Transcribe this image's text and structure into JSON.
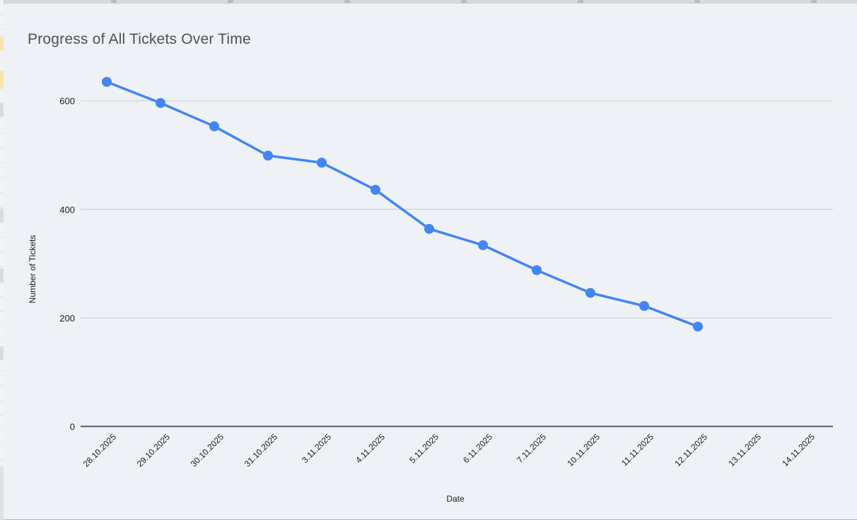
{
  "chart_data": {
    "type": "line",
    "title": "Progress of All Tickets Over Time",
    "xlabel": "Date",
    "ylabel": "Number of Tickets",
    "categories": [
      "28.10.2025",
      "29.10.2025",
      "30.10.2025",
      "31.10.2025",
      "3.11.2025",
      "4.11.2025",
      "5.11.2025",
      "6.11.2025",
      "7.11.2025",
      "10.11.2025",
      "11.11.2025",
      "12.11.2025",
      "13.11.2025",
      "14.11.2025"
    ],
    "series": [
      {
        "values": [
          635,
          596,
          553,
          499,
          486,
          436,
          364,
          334,
          288,
          246,
          222,
          184,
          null,
          null
        ]
      }
    ],
    "yticks": [
      0,
      200,
      400,
      600
    ],
    "ylim": [
      0,
      660
    ],
    "grid": true,
    "legend": "none",
    "line_color": "#4285f4",
    "marker_color": "#4285f4",
    "background_color": "#eef1f6",
    "gridline_color": "#d5d8db",
    "axis_line_color": "#55585c",
    "tick_label_color": "#1d1d1f"
  }
}
